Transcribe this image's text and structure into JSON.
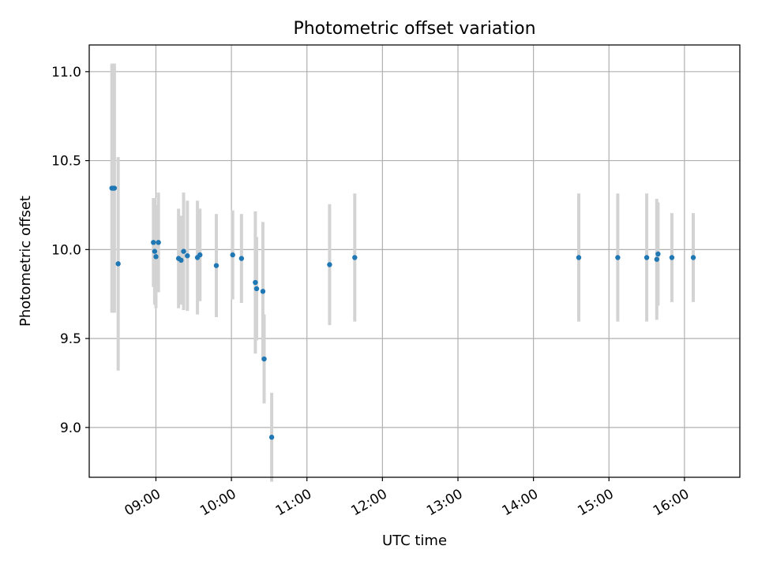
{
  "chart_data": {
    "type": "scatter",
    "title": "Photometric offset variation",
    "xlabel": "UTC time",
    "ylabel": "Photometric offset",
    "x_scale": "time",
    "xlim": [
      "08:07",
      "16:44"
    ],
    "ylim": [
      8.72,
      11.15
    ],
    "x_ticks": [
      "09:00",
      "10:00",
      "11:00",
      "12:00",
      "13:00",
      "14:00",
      "15:00",
      "16:00"
    ],
    "y_ticks": [
      9.0,
      9.5,
      10.0,
      10.5,
      11.0
    ],
    "y_tick_labels": [
      "9.0",
      "9.5",
      "10.0",
      "10.5",
      "11.0"
    ],
    "grid": true,
    "legend": false,
    "marker_color": "#1f77b4",
    "errorbar_color": "#d3d3d3",
    "points": [
      {
        "x": "08:25",
        "y": 10.345,
        "err": 0.7
      },
      {
        "x": "08:26",
        "y": 10.345,
        "err": 0.7
      },
      {
        "x": "08:27",
        "y": 10.345,
        "err": 0.7
      },
      {
        "x": "08:30",
        "y": 9.92,
        "err": 0.6
      },
      {
        "x": "08:58",
        "y": 10.04,
        "err": 0.25
      },
      {
        "x": "08:59",
        "y": 9.99,
        "err": 0.3
      },
      {
        "x": "09:00",
        "y": 9.96,
        "err": 0.29
      },
      {
        "x": "09:02",
        "y": 10.04,
        "err": 0.28
      },
      {
        "x": "09:18",
        "y": 9.95,
        "err": 0.28
      },
      {
        "x": "09:20",
        "y": 9.94,
        "err": 0.25
      },
      {
        "x": "09:22",
        "y": 9.99,
        "err": 0.33
      },
      {
        "x": "09:25",
        "y": 9.965,
        "err": 0.31
      },
      {
        "x": "09:33",
        "y": 9.955,
        "err": 0.32
      },
      {
        "x": "09:35",
        "y": 9.97,
        "err": 0.26
      },
      {
        "x": "09:48",
        "y": 9.91,
        "err": 0.29
      },
      {
        "x": "10:01",
        "y": 9.97,
        "err": 0.25
      },
      {
        "x": "10:08",
        "y": 9.95,
        "err": 0.25
      },
      {
        "x": "10:19",
        "y": 9.815,
        "err": 0.4
      },
      {
        "x": "10:20",
        "y": 9.78,
        "err": 0.29
      },
      {
        "x": "10:25",
        "y": 9.765,
        "err": 0.39
      },
      {
        "x": "10:26",
        "y": 9.385,
        "err": 0.25
      },
      {
        "x": "10:32",
        "y": 8.945,
        "err": 0.25
      },
      {
        "x": "11:18",
        "y": 9.915,
        "err": 0.34
      },
      {
        "x": "11:38",
        "y": 9.955,
        "err": 0.36
      },
      {
        "x": "14:36",
        "y": 9.955,
        "err": 0.36
      },
      {
        "x": "15:07",
        "y": 9.955,
        "err": 0.36
      },
      {
        "x": "15:30",
        "y": 9.955,
        "err": 0.36
      },
      {
        "x": "15:38",
        "y": 9.945,
        "err": 0.34
      },
      {
        "x": "15:39",
        "y": 9.975,
        "err": 0.29
      },
      {
        "x": "15:50",
        "y": 9.955,
        "err": 0.25
      },
      {
        "x": "16:07",
        "y": 9.955,
        "err": 0.25
      }
    ]
  }
}
